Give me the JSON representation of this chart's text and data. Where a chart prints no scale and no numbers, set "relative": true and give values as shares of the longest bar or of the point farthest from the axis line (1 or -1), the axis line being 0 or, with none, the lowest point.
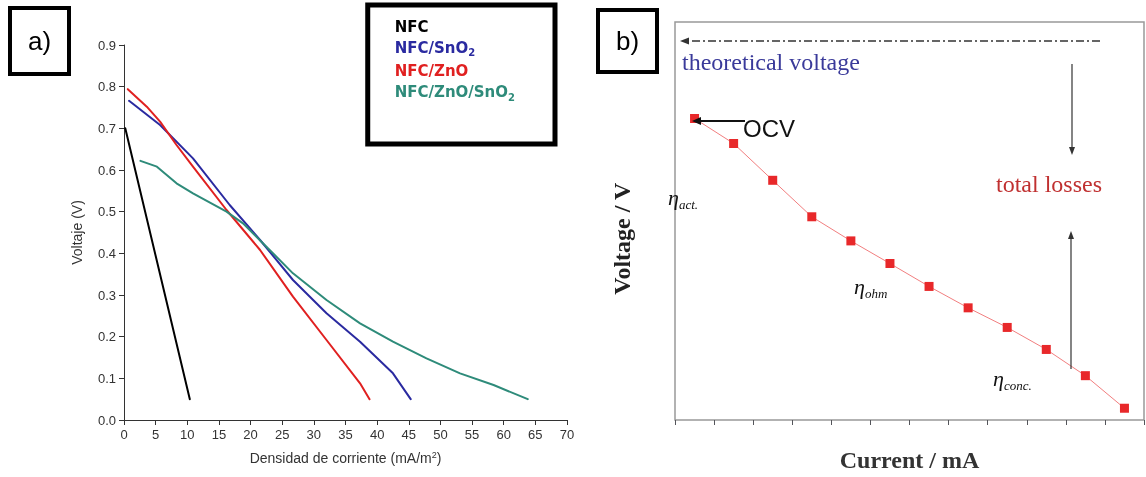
{
  "chart_data": [
    {
      "type": "line",
      "title": "a)",
      "xlabel": "Densidad de corriente (mA/m$^{2}$)",
      "ylabel": "Voltaje (V)",
      "xlim": [
        0,
        70
      ],
      "xticks": [
        0,
        5,
        10,
        15,
        20,
        25,
        30,
        35,
        40,
        45,
        50,
        55,
        60,
        65,
        70
      ],
      "ylim": [
        0,
        0.9
      ],
      "yticks": [
        {
          "value": 0,
          "label": "0.0"
        },
        0.1,
        0.2,
        0.3,
        0.4,
        0.5,
        0.6,
        0.7,
        0.8,
        0.9
      ],
      "grid": false,
      "legend": "top right",
      "marker": "none",
      "line_style": "solid",
      "series": [
        {
          "name": "NFC",
          "color": "#000000",
          "x": [
            0.2,
            10.4
          ],
          "values": [
            0.7,
            0.05
          ]
        },
        {
          "name": "NFC/SnO$_{2}$",
          "color": "#2a2aa0",
          "x": [
            0.8,
            5.7,
            10.9,
            16.7,
            21.5,
            26.7,
            32,
            37.3,
            42.5,
            45.3
          ],
          "values": [
            0.766,
            0.708,
            0.628,
            0.516,
            0.432,
            0.336,
            0.256,
            0.188,
            0.112,
            0.05
          ]
        },
        {
          "name": "NFC/ZnO",
          "color": "#e02020",
          "x": [
            0.6,
            3.6,
            5.7,
            8.3,
            10.9,
            16.2,
            21.5,
            26.7,
            32,
            37.3,
            38.8
          ],
          "values": [
            0.794,
            0.752,
            0.716,
            0.66,
            0.608,
            0.504,
            0.408,
            0.296,
            0.192,
            0.088,
            0.05
          ]
        },
        {
          "name": "NFC/ZnO/SnO$_{2}$",
          "color": "#2e8b7a",
          "x": [
            2.6,
            5.2,
            8.3,
            10.9,
            16.2,
            18.8,
            22.5,
            26.7,
            32,
            37.3,
            42.5,
            47.8,
            53.1,
            58.4,
            63.8
          ],
          "values": [
            0.622,
            0.608,
            0.568,
            0.544,
            0.5,
            0.472,
            0.416,
            0.352,
            0.288,
            0.232,
            0.188,
            0.148,
            0.112,
            0.084,
            0.05
          ]
        }
      ]
    },
    {
      "type": "line",
      "title": "b)",
      "xlabel": "Current / mA",
      "ylabel": "Voltage / V",
      "relative": true,
      "marker": "square",
      "line_style": "solid",
      "grid": false,
      "legend": false,
      "categories": [
        null,
        null,
        null,
        null,
        null,
        null,
        null,
        null,
        null,
        null,
        null,
        null
      ],
      "annotations": [
        "theoretical voltage",
        "OCV",
        "η$_{act.}$",
        "η$_{ohm}$",
        "total losses",
        "η$_{conc.}$"
      ],
      "series": [
        {
          "color": "#e8282a",
          "values": [
            1,
            0.917,
            0.795,
            0.674,
            0.594,
            0.519,
            0.443,
            0.372,
            0.307,
            0.234,
            0.147,
            0.039
          ]
        }
      ]
    }
  ]
}
